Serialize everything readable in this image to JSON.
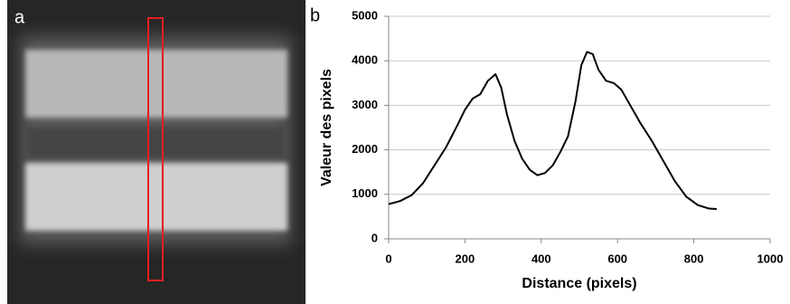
{
  "panel_a": {
    "label": "a"
  },
  "chart_data": {
    "type": "line",
    "panel_label": "b",
    "x_label": "Distance (pixels)",
    "y_label": "Valeur des pixels",
    "x": [
      0,
      30,
      60,
      90,
      120,
      150,
      180,
      200,
      220,
      240,
      260,
      280,
      295,
      310,
      330,
      350,
      370,
      390,
      410,
      430,
      450,
      470,
      490,
      505,
      520,
      535,
      550,
      570,
      590,
      610,
      630,
      660,
      690,
      720,
      750,
      780,
      810,
      840,
      860
    ],
    "series": [
      {
        "color": "#000000",
        "values": [
          780,
          850,
          980,
          1250,
          1650,
          2050,
          2550,
          2900,
          3150,
          3250,
          3550,
          3700,
          3400,
          2800,
          2200,
          1800,
          1550,
          1430,
          1480,
          1650,
          1950,
          2300,
          3100,
          3900,
          4200,
          4150,
          3800,
          3550,
          3500,
          3350,
          3050,
          2600,
          2200,
          1750,
          1300,
          950,
          760,
          680,
          670
        ]
      }
    ],
    "xlim": [
      0,
      1000
    ],
    "xticks": [
      0,
      200,
      400,
      600,
      800,
      1000
    ],
    "ylim": [
      0,
      5000
    ],
    "yticks": [
      0,
      1000,
      2000,
      3000,
      4000,
      5000
    ],
    "grid": true
  }
}
